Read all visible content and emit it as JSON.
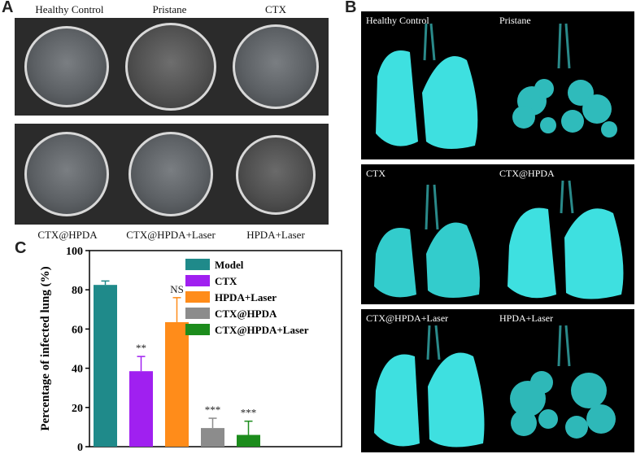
{
  "panels": {
    "a": "A",
    "b": "B",
    "c": "C"
  },
  "panel_a": {
    "top_labels": [
      "Healthy Control",
      "Pristane",
      "CTX"
    ],
    "bottom_labels": [
      "CTX@HPDA",
      "CTX@HPDA+Laser",
      "HPDA+Laser"
    ]
  },
  "panel_b": {
    "labels": [
      "Healthy Control",
      "Pristane",
      "CTX",
      "CTX@HPDA",
      "CTX@HPDA+Laser",
      "HPDA+Laser"
    ]
  },
  "chart_data": {
    "type": "bar",
    "categories": [
      "Model",
      "CTX",
      "HPDA+Laser",
      "CTX@HPDA",
      "CTX@HPDA+Laser"
    ],
    "values": [
      82.5,
      38.5,
      63.5,
      9.5,
      6
    ],
    "errors": [
      2,
      7.5,
      12.5,
      5,
      7
    ],
    "significance": [
      "",
      "**",
      "NS",
      "***",
      "***"
    ],
    "colors": [
      "#1f8a8a",
      "#a020f0",
      "#ff8c1a",
      "#8c8c8c",
      "#1c8c1c"
    ],
    "ylabel": "Percentage of infected lung (%)",
    "ylim": [
      0,
      100
    ],
    "yticks": [
      0,
      20,
      40,
      60,
      80,
      100
    ],
    "legend": [
      "Model",
      "CTX",
      "HPDA+Laser",
      "CTX@HPDA",
      "CTX@HPDA+Laser"
    ]
  }
}
